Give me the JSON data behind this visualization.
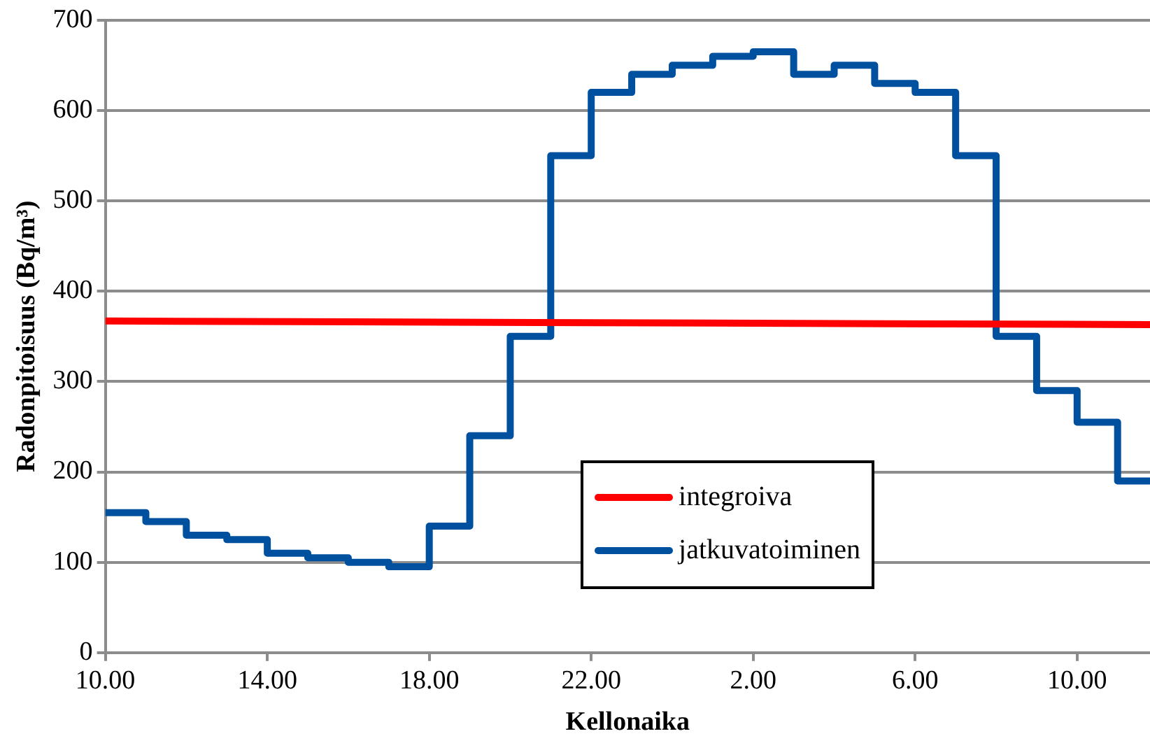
{
  "chart_data": {
    "type": "step",
    "xlabel": "Kellonaika",
    "ylabel": "Radonpitoisuus (Bq/m³)",
    "xlim": [
      "2000-01-01T10:00",
      "2000-01-02T11:48"
    ],
    "xticks": [
      {
        "value": "2000-01-01T10:00",
        "label": "10.00"
      },
      {
        "value": "2000-01-01T14:00",
        "label": "14.00"
      },
      {
        "value": "2000-01-01T18:00",
        "label": "18.00"
      },
      {
        "value": "2000-01-01T22:00",
        "label": "22.00"
      },
      {
        "value": "2000-01-02T02:00",
        "label": "2.00"
      },
      {
        "value": "2000-01-02T06:00",
        "label": "6.00"
      },
      {
        "value": "2000-01-02T10:00",
        "label": "10.00"
      }
    ],
    "ylim": [
      0,
      700
    ],
    "yticks": [
      0,
      100,
      200,
      300,
      400,
      500,
      600,
      700
    ],
    "grid": "y",
    "legend": "bottom right",
    "marker": "none",
    "line_style": "solid",
    "series": [
      {
        "name": "integroiva",
        "type": "line",
        "color": "#ff0000",
        "x": [
          "2000-01-01T10:00",
          "2000-01-02T11:48"
        ],
        "values": [
          367,
          363
        ]
      },
      {
        "name": "jatkuvatoiminen",
        "color": "#0050a0",
        "x": [
          "2000-01-01T10:00",
          "2000-01-01T11:00",
          "2000-01-01T12:00",
          "2000-01-01T13:00",
          "2000-01-01T14:00",
          "2000-01-01T15:00",
          "2000-01-01T16:00",
          "2000-01-01T17:00",
          "2000-01-01T18:00",
          "2000-01-01T19:00",
          "2000-01-01T20:00",
          "2000-01-01T21:00",
          "2000-01-01T22:00",
          "2000-01-01T23:00",
          "2000-01-02T00:00",
          "2000-01-02T01:00",
          "2000-01-02T02:00",
          "2000-01-02T03:00",
          "2000-01-02T04:00",
          "2000-01-02T05:00",
          "2000-01-02T06:00",
          "2000-01-02T07:00",
          "2000-01-02T08:00",
          "2000-01-02T09:00",
          "2000-01-02T10:00",
          "2000-01-02T11:00",
          "2000-01-02T11:48"
        ],
        "values": [
          155,
          145,
          130,
          125,
          110,
          105,
          100,
          95,
          140,
          240,
          350,
          550,
          620,
          640,
          650,
          660,
          665,
          640,
          650,
          630,
          620,
          550,
          350,
          290,
          255,
          190,
          190
        ]
      }
    ]
  }
}
